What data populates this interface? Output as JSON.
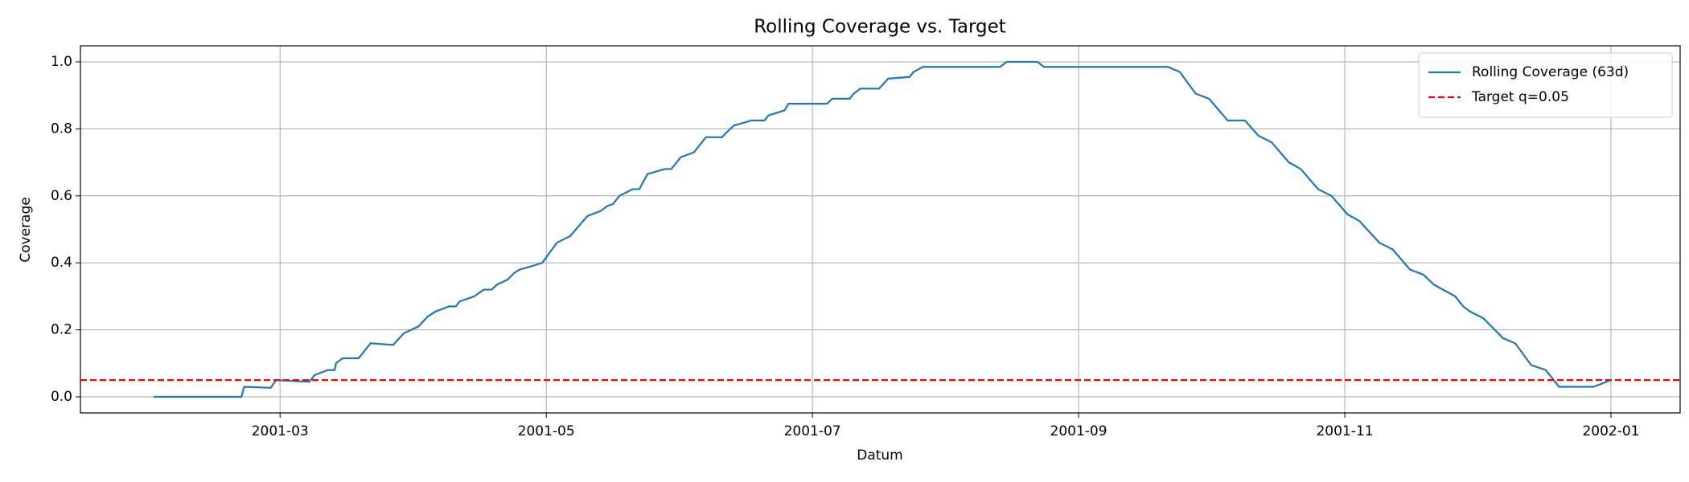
{
  "chart_data": {
    "type": "line",
    "title": "Rolling Coverage vs. Target",
    "x_label": "Datum",
    "y_label": "Coverage",
    "xlim": [
      0.5,
      12.52
    ],
    "xticks": [
      {
        "value": 2,
        "label": "2001-03"
      },
      {
        "value": 4,
        "label": "2001-05"
      },
      {
        "value": 6,
        "label": "2001-07"
      },
      {
        "value": 8,
        "label": "2001-09"
      },
      {
        "value": 10,
        "label": "2001-11"
      },
      {
        "value": 12,
        "label": "2002-01"
      }
    ],
    "ylim": [
      -0.048,
      1.048
    ],
    "yticks": [
      {
        "value": 0,
        "label": "0.0"
      },
      0.2,
      0.4,
      0.6,
      0.8,
      {
        "value": 1,
        "label": "1.0"
      }
    ],
    "grid": true,
    "legend": "upper right",
    "series": [
      {
        "name": "Rolling Coverage (63d)",
        "color": "#1f77b4",
        "x": [
          1.05,
          1.71,
          1.73,
          1.93,
          1.97,
          2.22,
          2.26,
          2.36,
          2.41,
          2.42,
          2.47,
          2.59,
          2.68,
          2.85,
          2.93,
          3.04,
          3.11,
          3.17,
          3.27,
          3.32,
          3.35,
          3.46,
          3.53,
          3.59,
          3.63,
          3.71,
          3.76,
          3.8,
          3.89,
          3.97,
          4.08,
          4.18,
          4.31,
          4.41,
          4.46,
          4.5,
          4.55,
          4.65,
          4.7,
          4.76,
          4.89,
          4.94,
          5.01,
          5.11,
          5.2,
          5.32,
          5.37,
          5.41,
          5.5,
          5.54,
          5.64,
          5.67,
          5.79,
          5.82,
          6.11,
          6.15,
          6.28,
          6.31,
          6.36,
          6.5,
          6.57,
          6.73,
          6.76,
          6.83,
          7.41,
          7.46,
          7.69,
          7.74,
          8.67,
          8.76,
          8.88,
          8.98,
          9.12,
          9.25,
          9.35,
          9.45,
          9.58,
          9.67,
          9.8,
          9.9,
          10.02,
          10.11,
          10.26,
          10.36,
          10.49,
          10.59,
          10.67,
          10.76,
          10.83,
          10.89,
          10.94,
          11.04,
          11.19,
          11.28,
          11.4,
          11.51,
          11.61,
          11.87,
          12.0
        ],
        "values": [
          0,
          0,
          0.03,
          0.027,
          0.05,
          0.045,
          0.065,
          0.08,
          0.08,
          0.1,
          0.115,
          0.115,
          0.16,
          0.155,
          0.19,
          0.21,
          0.24,
          0.255,
          0.27,
          0.27,
          0.285,
          0.3,
          0.32,
          0.32,
          0.335,
          0.35,
          0.37,
          0.38,
          0.39,
          0.4,
          0.46,
          0.48,
          0.54,
          0.555,
          0.57,
          0.575,
          0.6,
          0.62,
          0.62,
          0.665,
          0.68,
          0.68,
          0.715,
          0.73,
          0.775,
          0.775,
          0.795,
          0.81,
          0.82,
          0.825,
          0.825,
          0.84,
          0.855,
          0.875,
          0.875,
          0.89,
          0.89,
          0.905,
          0.92,
          0.92,
          0.95,
          0.955,
          0.97,
          0.985,
          0.985,
          1.0,
          1.0,
          0.985,
          0.985,
          0.97,
          0.905,
          0.89,
          0.825,
          0.825,
          0.78,
          0.76,
          0.7,
          0.68,
          0.62,
          0.6,
          0.545,
          0.525,
          0.46,
          0.44,
          0.38,
          0.365,
          0.335,
          0.315,
          0.3,
          0.27,
          0.255,
          0.235,
          0.175,
          0.16,
          0.095,
          0.08,
          0.03,
          0.03,
          0.05
        ]
      }
    ],
    "reference_lines": [
      {
        "name": "Target q=0.05",
        "color": "#ff0000",
        "value": 0.05,
        "style": "dashed"
      }
    ]
  }
}
